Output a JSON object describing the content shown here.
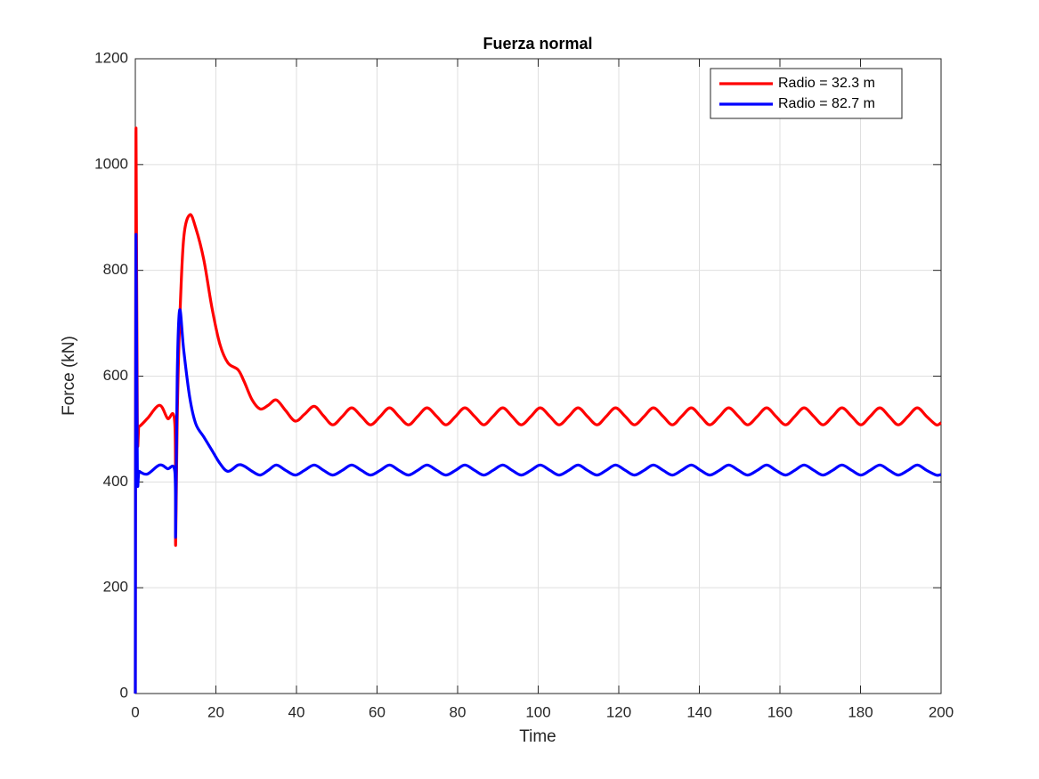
{
  "chart_data": {
    "type": "line",
    "title": "Fuerza normal",
    "x_label": "Time",
    "y_label": "Force (kN)",
    "xlim": [
      0,
      200
    ],
    "xticks": [
      0,
      20,
      40,
      60,
      80,
      100,
      120,
      140,
      160,
      180,
      200
    ],
    "ylim": [
      0,
      1200
    ],
    "yticks": [
      0,
      200,
      400,
      600,
      800,
      1000,
      1200
    ],
    "grid": true,
    "legend": "upper right",
    "x": [
      0,
      0.15,
      0.5,
      1,
      3,
      6,
      8,
      9.8,
      10,
      10.4,
      11,
      12,
      13.5,
      15,
      17,
      19,
      21,
      23,
      25.5,
      27,
      29,
      31,
      33,
      35.0,
      37.3,
      39.7,
      42.0,
      44.4,
      46.7,
      49.0,
      51.4,
      53.7,
      56.1,
      58.4,
      60.8,
      63.1,
      65.4,
      67.8,
      70.1,
      72.4,
      74.8,
      77.1,
      79.5,
      81.8,
      84.2,
      86.5,
      88.8,
      91.2,
      93.5,
      95.8,
      98.2,
      100.5,
      102.9,
      105.2,
      107.6,
      109.9,
      112.2,
      114.6,
      116.9,
      119.2,
      121.6,
      123.9,
      126.3,
      128.6,
      131.0,
      133.3,
      135.6,
      138.0,
      140.3,
      142.6,
      145.0,
      147.3,
      149.7,
      152.0,
      154.4,
      156.7,
      159.0,
      161.4,
      163.7,
      166.0,
      168.4,
      170.7,
      173.1,
      175.4,
      177.8,
      180.1,
      182.4,
      184.8,
      187.1,
      189.4,
      191.8,
      194.1,
      196.4,
      198.8,
      200
    ],
    "series": [
      {
        "name": "Radio = 32.3 m",
        "color": "#ff0000",
        "values": [
          0,
          1060,
          510,
          505,
          520,
          545,
          520,
          510,
          280,
          520,
          700,
          860,
          905,
          880,
          820,
          730,
          660,
          625,
          612,
          590,
          555,
          538,
          545,
          555,
          535,
          515,
          528,
          543,
          525,
          508,
          524,
          540,
          524,
          508,
          524,
          540,
          524,
          508,
          524,
          540,
          524,
          508,
          524,
          540,
          524,
          508,
          524,
          540,
          524,
          508,
          524,
          540,
          524,
          508,
          524,
          540,
          524,
          508,
          524,
          540,
          524,
          508,
          524,
          540,
          524,
          508,
          524,
          540,
          524,
          508,
          524,
          540,
          524,
          508,
          524,
          540,
          524,
          508,
          524,
          540,
          524,
          508,
          524,
          540,
          524,
          508,
          524,
          540,
          524,
          508,
          524,
          540,
          524,
          508,
          512
        ]
      },
      {
        "name": "Radio = 82.7 m",
        "color": "#0000ff",
        "values": [
          0,
          860,
          425,
          420,
          415,
          432,
          425,
          420,
          300,
          600,
          725,
          650,
          560,
          510,
          485,
          460,
          435,
          420,
          432,
          430,
          420,
          413,
          422,
          432,
          422,
          413,
          422,
          432,
          422,
          413,
          422,
          432,
          422,
          413,
          422,
          432,
          422,
          413,
          422,
          432,
          422,
          413,
          422,
          432,
          422,
          413,
          422,
          432,
          422,
          413,
          422,
          432,
          422,
          413,
          422,
          432,
          422,
          413,
          422,
          432,
          422,
          413,
          422,
          432,
          422,
          413,
          422,
          432,
          422,
          413,
          422,
          432,
          422,
          413,
          422,
          432,
          422,
          413,
          422,
          432,
          422,
          413,
          422,
          432,
          422,
          413,
          422,
          432,
          422,
          413,
          422,
          432,
          422,
          413,
          414
        ]
      }
    ]
  }
}
